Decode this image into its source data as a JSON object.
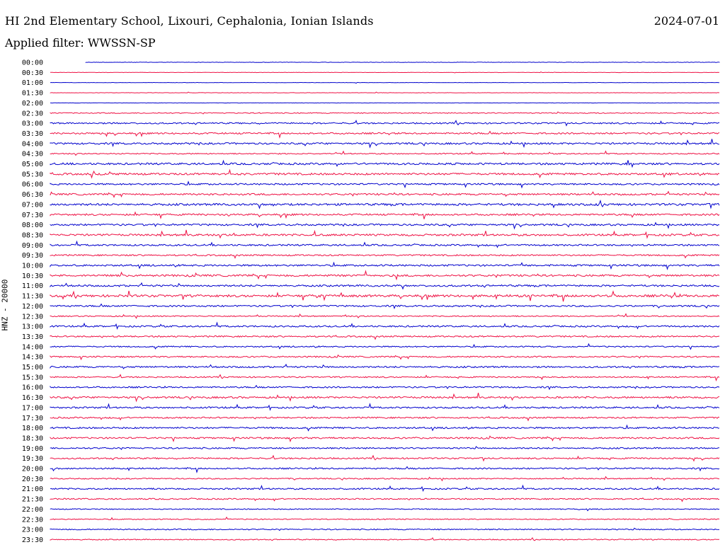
{
  "header": {
    "station_title": "HI 2nd Elementary School, Lixouri, Cephalonia, Ionian Islands",
    "date": "2024-07-01",
    "filter_label": "Applied filter: WWSSN-SP"
  },
  "colors": {
    "trace_a": "#0000cc",
    "trace_b": "#ee1144",
    "background": "#ffffff",
    "text": "#000000"
  },
  "chart_data": {
    "type": "helicorder",
    "ylabel": "HNZ - 20000",
    "row_interval_minutes": 30,
    "series_colors_alternate": [
      "#0000cc",
      "#ee1144"
    ],
    "rows": [
      {
        "label": "00:00",
        "activity": 0.12
      },
      {
        "label": "00:30",
        "activity": 0.1
      },
      {
        "label": "01:00",
        "activity": 0.1
      },
      {
        "label": "01:30",
        "activity": 0.1
      },
      {
        "label": "02:00",
        "activity": 0.1
      },
      {
        "label": "02:30",
        "activity": 0.3
      },
      {
        "label": "03:00",
        "activity": 0.45
      },
      {
        "label": "03:30",
        "activity": 0.5
      },
      {
        "label": "04:00",
        "activity": 0.55
      },
      {
        "label": "04:30",
        "activity": 0.35
      },
      {
        "label": "05:00",
        "activity": 0.6
      },
      {
        "label": "05:30",
        "activity": 0.6
      },
      {
        "label": "06:00",
        "activity": 0.5
      },
      {
        "label": "06:30",
        "activity": 0.55
      },
      {
        "label": "07:00",
        "activity": 0.65
      },
      {
        "label": "07:30",
        "activity": 0.55
      },
      {
        "label": "08:00",
        "activity": 0.55
      },
      {
        "label": "08:30",
        "activity": 0.6
      },
      {
        "label": "09:00",
        "activity": 0.5
      },
      {
        "label": "09:30",
        "activity": 0.45
      },
      {
        "label": "10:00",
        "activity": 0.55
      },
      {
        "label": "10:30",
        "activity": 0.6
      },
      {
        "label": "11:00",
        "activity": 0.55
      },
      {
        "label": "11:30",
        "activity": 0.7
      },
      {
        "label": "12:00",
        "activity": 0.5
      },
      {
        "label": "12:30",
        "activity": 0.35
      },
      {
        "label": "13:00",
        "activity": 0.5
      },
      {
        "label": "13:30",
        "activity": 0.45
      },
      {
        "label": "14:00",
        "activity": 0.4
      },
      {
        "label": "14:30",
        "activity": 0.45
      },
      {
        "label": "15:00",
        "activity": 0.5
      },
      {
        "label": "15:30",
        "activity": 0.4
      },
      {
        "label": "16:00",
        "activity": 0.45
      },
      {
        "label": "16:30",
        "activity": 0.55
      },
      {
        "label": "17:00",
        "activity": 0.5
      },
      {
        "label": "17:30",
        "activity": 0.45
      },
      {
        "label": "18:00",
        "activity": 0.5
      },
      {
        "label": "18:30",
        "activity": 0.5
      },
      {
        "label": "19:00",
        "activity": 0.45
      },
      {
        "label": "19:30",
        "activity": 0.45
      },
      {
        "label": "20:00",
        "activity": 0.45
      },
      {
        "label": "20:30",
        "activity": 0.35
      },
      {
        "label": "21:00",
        "activity": 0.45
      },
      {
        "label": "21:30",
        "activity": 0.4
      },
      {
        "label": "22:00",
        "activity": 0.3
      },
      {
        "label": "22:30",
        "activity": 0.3
      },
      {
        "label": "23:00",
        "activity": 0.35
      },
      {
        "label": "23:30",
        "activity": 0.3
      }
    ]
  }
}
